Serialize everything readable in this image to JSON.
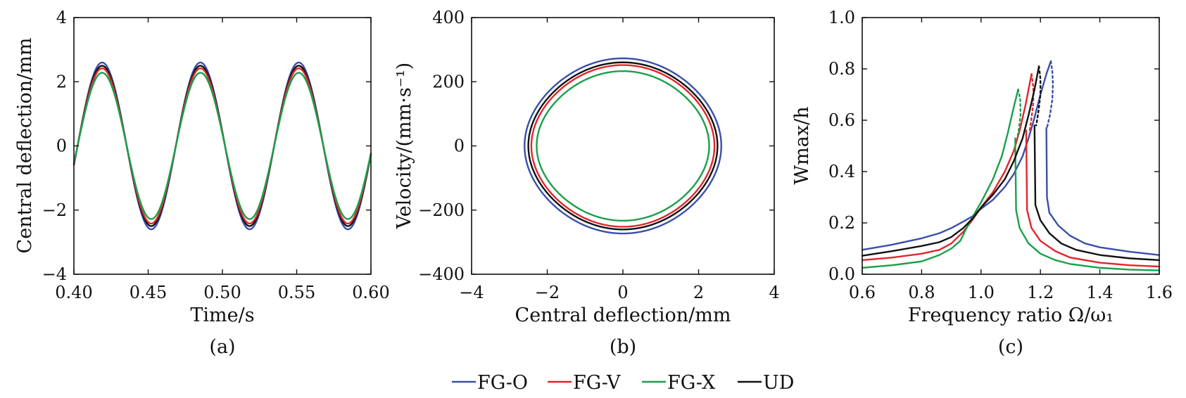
{
  "colors": {
    "FG-O": "#3a4fa8",
    "FG-V": "#e0262c",
    "FG-X": "#1aa04a",
    "UD": "#111111"
  },
  "legend": [
    {
      "name": "FG-O",
      "label": "FG-O"
    },
    {
      "name": "FG-V",
      "label": "FG-V"
    },
    {
      "name": "FG-X",
      "label": "FG-X"
    },
    {
      "name": "UD",
      "label": "UD"
    }
  ],
  "chart_data": [
    {
      "id": "a",
      "type": "line",
      "caption": "(a)",
      "xlabel": "Time/s",
      "ylabel": "Central deflection/mm",
      "xlim": [
        0.4,
        0.6
      ],
      "ylim": [
        -4,
        4
      ],
      "xticks": [
        0.4,
        0.45,
        0.5,
        0.55,
        0.6
      ],
      "xtick_labels": [
        "0.40",
        "0.45",
        "0.50",
        "0.55",
        "0.60"
      ],
      "yticks": [
        -4,
        -2,
        0,
        2,
        4
      ],
      "ytick_labels": [
        "−4",
        "−2",
        "0",
        "2",
        "4"
      ],
      "period": 0.0662,
      "peak_times": [
        0.419,
        0.485,
        0.551
      ],
      "trough_times": [
        0.452,
        0.518,
        0.584
      ],
      "series": [
        {
          "name": "FG-O",
          "amplitude": 2.6
        },
        {
          "name": "UD",
          "amplitude": 2.5
        },
        {
          "name": "FG-V",
          "amplitude": 2.42
        },
        {
          "name": "FG-X",
          "amplitude": 2.28
        }
      ]
    },
    {
      "id": "b",
      "type": "line",
      "caption": "(b)",
      "xlabel": "Central deflection/mm",
      "ylabel": "Velocity/(mm·s⁻¹)",
      "xlim": [
        -4,
        4
      ],
      "ylim": [
        -400,
        400
      ],
      "xticks": [
        -4,
        -2,
        0,
        2,
        4
      ],
      "xtick_labels": [
        "−4",
        "−2",
        "0",
        "2",
        "4"
      ],
      "yticks": [
        -400,
        -200,
        0,
        200,
        400
      ],
      "ytick_labels": [
        "−400",
        "−200",
        "0",
        "200",
        "400"
      ],
      "series": [
        {
          "name": "FG-O",
          "deflection_amplitude": 2.6,
          "velocity_amplitude": 260
        },
        {
          "name": "UD",
          "deflection_amplitude": 2.5,
          "velocity_amplitude": 248
        },
        {
          "name": "FG-V",
          "deflection_amplitude": 2.42,
          "velocity_amplitude": 240
        },
        {
          "name": "FG-X",
          "deflection_amplitude": 2.28,
          "velocity_amplitude": 222
        }
      ]
    },
    {
      "id": "c",
      "type": "line",
      "caption": "(c)",
      "xlabel": "Frequency ratio Ω/ω₁",
      "ylabel": "Wmax/h",
      "xlim": [
        0.6,
        1.6
      ],
      "ylim": [
        0.0,
        1.0
      ],
      "xticks": [
        0.6,
        0.8,
        1.0,
        1.2,
        1.4,
        1.6
      ],
      "xtick_labels": [
        "0.6",
        "0.8",
        "1.0",
        "1.2",
        "1.4",
        "1.6"
      ],
      "yticks": [
        0.0,
        0.2,
        0.4,
        0.6,
        0.8,
        1.0
      ],
      "ytick_labels": [
        "0.0",
        "0.2",
        "0.4",
        "0.6",
        "0.8",
        "1.0"
      ],
      "series": [
        {
          "name": "FG-O",
          "upper": {
            "x": [
              0.6,
              0.7,
              0.8,
              0.86,
              0.9,
              0.94,
              0.97,
              1.0,
              1.04,
              1.08,
              1.11,
              1.14,
              1.16,
              1.18,
              1.2,
              1.22,
              1.235
            ],
            "y": [
              0.095,
              0.115,
              0.14,
              0.16,
              0.18,
              0.205,
              0.225,
              0.255,
              0.29,
              0.34,
              0.39,
              0.46,
              0.53,
              0.61,
              0.7,
              0.78,
              0.83
            ]
          },
          "unstable": {
            "x": [
              1.235,
              1.24,
              1.242,
              1.24,
              1.232,
              1.222
            ],
            "y": [
              0.83,
              0.79,
              0.74,
              0.68,
              0.62,
              0.57
            ]
          },
          "lower": {
            "x": [
              1.22,
              1.222,
              1.23,
              1.26,
              1.3,
              1.35,
              1.4,
              1.5,
              1.6
            ],
            "y": [
              0.57,
              0.3,
              0.24,
              0.19,
              0.15,
              0.12,
              0.105,
              0.088,
              0.075
            ]
          }
        },
        {
          "name": "FG-V",
          "upper": {
            "x": [
              0.6,
              0.7,
              0.8,
              0.86,
              0.9,
              0.94,
              0.97,
              1.0,
              1.04,
              1.08,
              1.11,
              1.13,
              1.15,
              1.17
            ],
            "y": [
              0.055,
              0.065,
              0.08,
              0.095,
              0.12,
              0.165,
              0.21,
              0.26,
              0.32,
              0.4,
              0.48,
              0.56,
              0.66,
              0.78
            ]
          },
          "unstable": {
            "x": [
              1.17,
              1.176,
              1.176,
              1.17,
              1.164
            ],
            "y": [
              0.78,
              0.73,
              0.67,
              0.61,
              0.56
            ]
          },
          "lower": {
            "x": [
              1.152,
              1.155,
              1.17,
              1.2,
              1.25,
              1.3,
              1.4,
              1.5,
              1.6
            ],
            "y": [
              0.56,
              0.25,
              0.18,
              0.13,
              0.09,
              0.065,
              0.045,
              0.035,
              0.03
            ]
          }
        },
        {
          "name": "FG-X",
          "upper": {
            "x": [
              0.6,
              0.7,
              0.8,
              0.86,
              0.9,
              0.93,
              0.96,
              1.0,
              1.04,
              1.07,
              1.09,
              1.11,
              1.125
            ],
            "y": [
              0.025,
              0.035,
              0.05,
              0.075,
              0.1,
              0.13,
              0.2,
              0.28,
              0.37,
              0.46,
              0.55,
              0.65,
              0.72
            ]
          },
          "unstable": {
            "x": [
              1.125,
              1.132,
              1.133,
              1.128,
              1.122
            ],
            "y": [
              0.72,
              0.68,
              0.62,
              0.57,
              0.53
            ]
          },
          "lower": {
            "x": [
              1.115,
              1.118,
              1.13,
              1.16,
              1.2,
              1.25,
              1.3,
              1.4,
              1.5,
              1.6
            ],
            "y": [
              0.53,
              0.25,
              0.18,
              0.12,
              0.08,
              0.055,
              0.04,
              0.025,
              0.018,
              0.015
            ]
          }
        },
        {
          "name": "UD",
          "upper": {
            "x": [
              0.6,
              0.7,
              0.8,
              0.86,
              0.9,
              0.94,
              0.97,
              1.0,
              1.04,
              1.08,
              1.11,
              1.14,
              1.16,
              1.18,
              1.195
            ],
            "y": [
              0.072,
              0.09,
              0.11,
              0.125,
              0.145,
              0.18,
              0.215,
              0.26,
              0.31,
              0.37,
              0.44,
              0.53,
              0.62,
              0.72,
              0.81
            ]
          },
          "unstable": {
            "x": [
              1.195,
              1.2,
              1.2,
              1.194,
              1.186
            ],
            "y": [
              0.81,
              0.76,
              0.7,
              0.64,
              0.58
            ]
          },
          "lower": {
            "x": [
              1.18,
              1.183,
              1.2,
              1.23,
              1.27,
              1.32,
              1.4,
              1.5,
              1.6
            ],
            "y": [
              0.58,
              0.27,
              0.21,
              0.16,
              0.12,
              0.095,
              0.075,
              0.062,
              0.055
            ]
          }
        }
      ]
    }
  ]
}
